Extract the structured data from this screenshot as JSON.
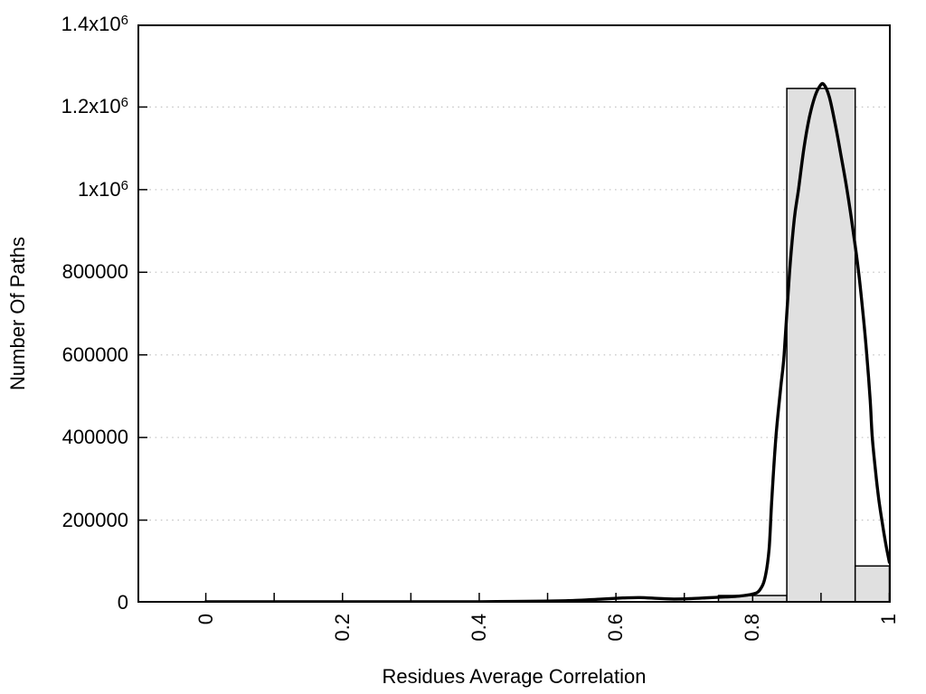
{
  "chart_data": {
    "type": "bar",
    "subtype": "histogram-with-fitted-curve",
    "title": "",
    "xlabel": "Residues Average Correlation",
    "ylabel": "Number Of Paths",
    "xlim": [
      -0.1,
      1.002
    ],
    "ylim": [
      0,
      1400000
    ],
    "grid": "horizontal dotted gridlines at labeled y ticks",
    "legend": "none",
    "colors": {
      "bar_fill": "#e0e0e0",
      "bar_stroke": "#000000",
      "curve": "#000000",
      "grid": "#c8c8c8",
      "axis": "#000000",
      "background": "#ffffff"
    },
    "x_ticks": [
      {
        "value": 0.0,
        "label": "0"
      },
      {
        "value": 0.1,
        "label": ""
      },
      {
        "value": 0.2,
        "label": "0.2"
      },
      {
        "value": 0.3,
        "label": ""
      },
      {
        "value": 0.4,
        "label": "0.4"
      },
      {
        "value": 0.5,
        "label": ""
      },
      {
        "value": 0.6,
        "label": "0.6"
      },
      {
        "value": 0.7,
        "label": ""
      },
      {
        "value": 0.8,
        "label": "0.8"
      },
      {
        "value": 0.9,
        "label": ""
      },
      {
        "value": 1.0,
        "label": "1"
      }
    ],
    "y_ticks": [
      {
        "value": 0,
        "base": "0",
        "exp": ""
      },
      {
        "value": 200000,
        "base": "200000",
        "exp": ""
      },
      {
        "value": 400000,
        "base": "400000",
        "exp": ""
      },
      {
        "value": 600000,
        "base": "600000",
        "exp": ""
      },
      {
        "value": 800000,
        "base": "800000",
        "exp": ""
      },
      {
        "value": 1000000,
        "base": "1x10",
        "exp": "6"
      },
      {
        "value": 1200000,
        "base": "1.2x10",
        "exp": "6"
      },
      {
        "value": 1400000,
        "base": "1.4x10",
        "exp": "6"
      }
    ],
    "bars": [
      {
        "x0": 0.75,
        "x1": 0.85,
        "count": 17500
      },
      {
        "x0": 0.85,
        "x1": 0.95,
        "count": 1245000
      },
      {
        "x0": 0.95,
        "x1": 1.0,
        "count": 89000
      }
    ],
    "curve_points": [
      [
        0.0,
        2500
      ],
      [
        0.05,
        2500
      ],
      [
        0.1,
        2500
      ],
      [
        0.15,
        2500
      ],
      [
        0.2,
        2500
      ],
      [
        0.25,
        2500
      ],
      [
        0.3,
        2500
      ],
      [
        0.35,
        2500
      ],
      [
        0.4,
        2500
      ],
      [
        0.45,
        3000
      ],
      [
        0.5,
        4000
      ],
      [
        0.54,
        5500
      ],
      [
        0.58,
        9000
      ],
      [
        0.61,
        11500
      ],
      [
        0.635,
        12500
      ],
      [
        0.66,
        10500
      ],
      [
        0.685,
        9000
      ],
      [
        0.71,
        10000
      ],
      [
        0.735,
        12000
      ],
      [
        0.76,
        14000
      ],
      [
        0.78,
        16000
      ],
      [
        0.8,
        21000
      ],
      [
        0.81,
        30000
      ],
      [
        0.818,
        60000
      ],
      [
        0.824,
        130000
      ],
      [
        0.828,
        250000
      ],
      [
        0.834,
        400000
      ],
      [
        0.841,
        520000
      ],
      [
        0.846,
        600000
      ],
      [
        0.854,
        800000
      ],
      [
        0.861,
        930000
      ],
      [
        0.867,
        1000000
      ],
      [
        0.875,
        1100000
      ],
      [
        0.883,
        1175000
      ],
      [
        0.891,
        1225000
      ],
      [
        0.898,
        1250000
      ],
      [
        0.904,
        1255000
      ],
      [
        0.912,
        1225000
      ],
      [
        0.92,
        1165000
      ],
      [
        0.929,
        1085000
      ],
      [
        0.938,
        1000000
      ],
      [
        0.947,
        900000
      ],
      [
        0.955,
        800000
      ],
      [
        0.962,
        690000
      ],
      [
        0.967,
        600000
      ],
      [
        0.972,
        490000
      ],
      [
        0.975,
        400000
      ],
      [
        0.981,
        300000
      ],
      [
        0.985,
        245000
      ],
      [
        0.989,
        200000
      ],
      [
        0.995,
        140000
      ],
      [
        1.0,
        98000
      ]
    ]
  }
}
